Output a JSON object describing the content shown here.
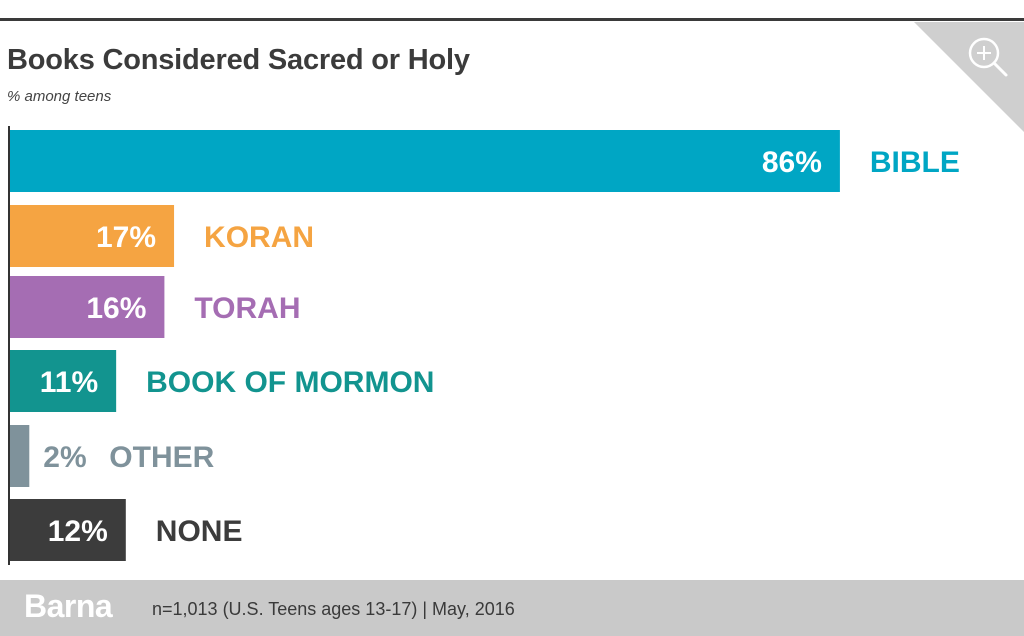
{
  "header": {
    "title": "Books Considered Sacred or Holy",
    "subtitle": "% among teens"
  },
  "icons": {
    "zoom": "zoom-in-icon"
  },
  "footer": {
    "brand": "Barna",
    "source": "n=1,013 (U.S. Teens ages 13-17) | May, 2016"
  },
  "chart_data": {
    "type": "bar",
    "orientation": "horizontal",
    "title": "Books Considered Sacred or Holy",
    "subtitle": "% among teens",
    "xlim": [
      0,
      100
    ],
    "grid": false,
    "bars": [
      {
        "category": "BIBLE",
        "value": 86,
        "label": "86%",
        "color": "#00a6c4",
        "label_color": "#00a6c4"
      },
      {
        "category": "KORAN",
        "value": 17,
        "label": "17%",
        "color": "#f5a442",
        "label_color": "#f5a442"
      },
      {
        "category": "TORAH",
        "value": 16,
        "label": "16%",
        "color": "#a56db3",
        "label_color": "#a56db3"
      },
      {
        "category": "BOOK OF MORMON",
        "value": 11,
        "label": "11%",
        "color": "#12948f",
        "label_color": "#12948f"
      },
      {
        "category": "OTHER",
        "value": 2,
        "label": "2%",
        "color": "#7f929b",
        "label_color": "#7f929b"
      },
      {
        "category": "NONE",
        "value": 12,
        "label": "12%",
        "color": "#3c3c3c",
        "label_color": "#3c3c3c"
      }
    ]
  }
}
